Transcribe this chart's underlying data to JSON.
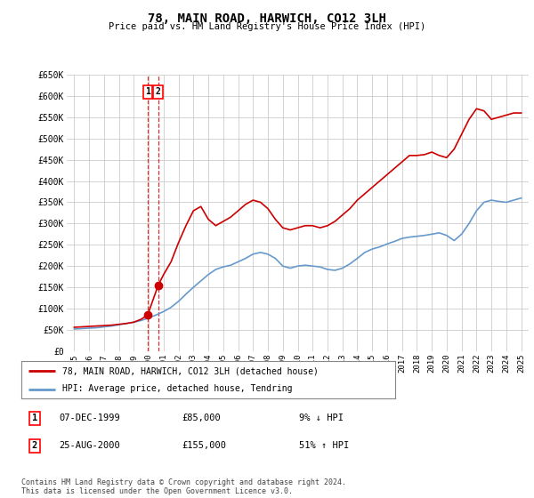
{
  "title": "78, MAIN ROAD, HARWICH, CO12 3LH",
  "subtitle": "Price paid vs. HM Land Registry's House Price Index (HPI)",
  "legend_line1": "78, MAIN ROAD, HARWICH, CO12 3LH (detached house)",
  "legend_line2": "HPI: Average price, detached house, Tendring",
  "footer": "Contains HM Land Registry data © Crown copyright and database right 2024.\nThis data is licensed under the Open Government Licence v3.0.",
  "transactions": [
    {
      "num": 1,
      "date": "07-DEC-1999",
      "price": 85000,
      "hpi_rel": "9% ↓ HPI",
      "x": 1999.93
    },
    {
      "num": 2,
      "date": "25-AUG-2000",
      "price": 155000,
      "hpi_rel": "51% ↑ HPI",
      "x": 2000.64
    }
  ],
  "ylim": [
    0,
    650000
  ],
  "xlim": [
    1994.5,
    2025.5
  ],
  "yticks": [
    0,
    50000,
    100000,
    150000,
    200000,
    250000,
    300000,
    350000,
    400000,
    450000,
    500000,
    550000,
    600000,
    650000
  ],
  "ytick_labels": [
    "£0",
    "£50K",
    "£100K",
    "£150K",
    "£200K",
    "£250K",
    "£300K",
    "£350K",
    "£400K",
    "£450K",
    "£500K",
    "£550K",
    "£600K",
    "£650K"
  ],
  "red_color": "#cc0000",
  "blue_color": "#6699cc",
  "marker_color": "#cc0000",
  "dashed_color": "#cc0000",
  "grid_color": "#cccccc",
  "bg_color": "#ffffff",
  "hpi_x": [
    1995.0,
    1995.5,
    1996.0,
    1996.5,
    1997.0,
    1997.5,
    1998.0,
    1998.5,
    1999.0,
    1999.5,
    2000.0,
    2000.5,
    2001.0,
    2001.5,
    2002.0,
    2002.5,
    2003.0,
    2003.5,
    2004.0,
    2004.5,
    2005.0,
    2005.5,
    2006.0,
    2006.5,
    2007.0,
    2007.5,
    2008.0,
    2008.5,
    2009.0,
    2009.5,
    2010.0,
    2010.5,
    2011.0,
    2011.5,
    2012.0,
    2012.5,
    2013.0,
    2013.5,
    2014.0,
    2014.5,
    2015.0,
    2015.5,
    2016.0,
    2016.5,
    2017.0,
    2017.5,
    2018.0,
    2018.5,
    2019.0,
    2019.5,
    2020.0,
    2020.5,
    2021.0,
    2021.5,
    2022.0,
    2022.5,
    2023.0,
    2023.5,
    2024.0,
    2024.5,
    2025.0
  ],
  "hpi_y": [
    52000,
    53000,
    54000,
    55000,
    57000,
    59000,
    62000,
    65000,
    68000,
    72000,
    78000,
    85000,
    93000,
    103000,
    117000,
    134000,
    150000,
    165000,
    180000,
    192000,
    198000,
    202000,
    210000,
    218000,
    228000,
    232000,
    228000,
    218000,
    200000,
    195000,
    200000,
    202000,
    200000,
    198000,
    192000,
    190000,
    195000,
    205000,
    218000,
    232000,
    240000,
    245000,
    252000,
    258000,
    265000,
    268000,
    270000,
    272000,
    275000,
    278000,
    272000,
    260000,
    275000,
    300000,
    330000,
    350000,
    355000,
    352000,
    350000,
    355000,
    360000
  ],
  "red_x": [
    1995.0,
    1995.5,
    1996.0,
    1996.5,
    1997.0,
    1997.5,
    1998.0,
    1998.5,
    1999.0,
    1999.5,
    1999.93,
    2000.64,
    2001.0,
    2001.5,
    2002.0,
    2002.5,
    2003.0,
    2003.5,
    2004.0,
    2004.5,
    2005.0,
    2005.5,
    2006.0,
    2006.5,
    2007.0,
    2007.5,
    2008.0,
    2008.5,
    2009.0,
    2009.5,
    2010.0,
    2010.5,
    2011.0,
    2011.5,
    2012.0,
    2012.5,
    2013.0,
    2013.5,
    2014.0,
    2014.5,
    2015.0,
    2015.5,
    2016.0,
    2016.5,
    2017.0,
    2017.5,
    2018.0,
    2018.5,
    2019.0,
    2019.5,
    2020.0,
    2020.5,
    2021.0,
    2021.5,
    2022.0,
    2022.5,
    2023.0,
    2023.5,
    2024.0,
    2024.5,
    2025.0
  ],
  "red_y": [
    56000,
    57000,
    58000,
    59000,
    60000,
    61000,
    63000,
    65000,
    68000,
    75000,
    85000,
    155000,
    180000,
    210000,
    255000,
    295000,
    330000,
    340000,
    310000,
    295000,
    305000,
    315000,
    330000,
    345000,
    355000,
    350000,
    335000,
    310000,
    290000,
    285000,
    290000,
    295000,
    295000,
    290000,
    295000,
    305000,
    320000,
    335000,
    355000,
    370000,
    385000,
    400000,
    415000,
    430000,
    445000,
    460000,
    460000,
    462000,
    468000,
    460000,
    455000,
    475000,
    510000,
    545000,
    570000,
    565000,
    545000,
    550000,
    555000,
    560000,
    560000
  ],
  "xtick_years": [
    1995,
    1996,
    1997,
    1998,
    1999,
    2000,
    2001,
    2002,
    2003,
    2004,
    2005,
    2006,
    2007,
    2008,
    2009,
    2010,
    2011,
    2012,
    2013,
    2014,
    2015,
    2016,
    2017,
    2018,
    2019,
    2020,
    2021,
    2022,
    2023,
    2024,
    2025
  ]
}
